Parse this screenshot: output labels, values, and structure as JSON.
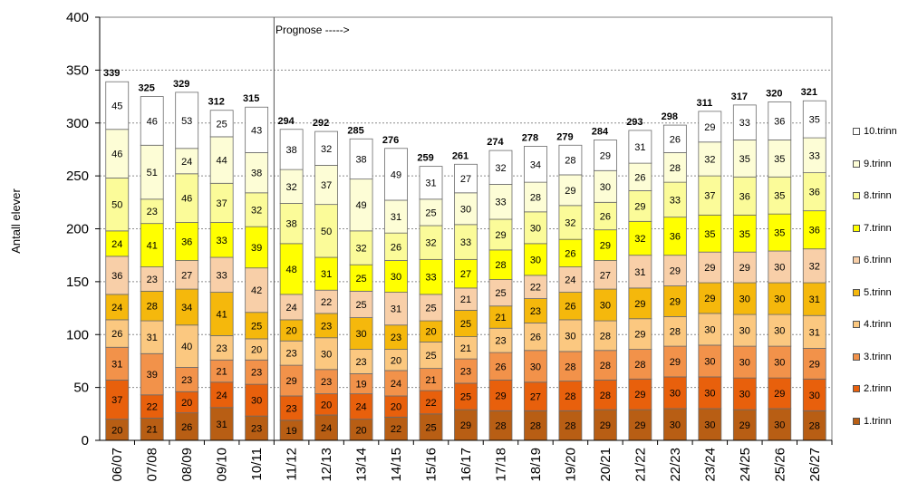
{
  "chart_data": {
    "type": "bar",
    "stacked": true,
    "ylabel": "Antall elever",
    "xlabel": "",
    "ylim": [
      0,
      400
    ],
    "yticks": [
      0,
      50,
      100,
      150,
      200,
      250,
      300,
      350,
      400
    ],
    "grid": "dashed horizontal gridlines",
    "legend_position": "right",
    "annotation": {
      "text": "Prognose ----->",
      "after_category": "10/11"
    },
    "categories": [
      "06/07",
      "07/08",
      "08/09",
      "09/10",
      "10/11",
      "11/12",
      "12/13",
      "13/14",
      "14/15",
      "15/16",
      "16/17",
      "17/18",
      "18/19",
      "19/20",
      "20/21",
      "21/22",
      "22/23",
      "23/24",
      "24/25",
      "25/26",
      "26/27"
    ],
    "totals": [
      339,
      325,
      329,
      312,
      315,
      294,
      292,
      285,
      276,
      259,
      261,
      274,
      278,
      279,
      284,
      293,
      298,
      311,
      317,
      320,
      321
    ],
    "series": [
      {
        "name": "1.trinn",
        "color": "#b85e14",
        "values": [
          20,
          21,
          26,
          31,
          23,
          19,
          24,
          20,
          22,
          25,
          29,
          28,
          28,
          28,
          29,
          29,
          30,
          30,
          29,
          30,
          28
        ]
      },
      {
        "name": "2.trinn",
        "color": "#e8600c",
        "values": [
          37,
          22,
          20,
          24,
          30,
          23,
          20,
          24,
          20,
          22,
          25,
          29,
          27,
          28,
          28,
          29,
          30,
          30,
          30,
          29,
          30
        ]
      },
      {
        "name": "3.trinn",
        "color": "#f2924a",
        "values": [
          31,
          39,
          23,
          21,
          23,
          29,
          23,
          19,
          24,
          21,
          23,
          26,
          30,
          28,
          28,
          28,
          29,
          30,
          30,
          30,
          29
        ]
      },
      {
        "name": "4.trinn",
        "color": "#fbc880",
        "values": [
          26,
          31,
          40,
          23,
          20,
          23,
          30,
          23,
          20,
          25,
          21,
          23,
          26,
          30,
          28,
          29,
          28,
          30,
          30,
          30,
          31
        ]
      },
      {
        "name": "5.trinn",
        "color": "#f5b80c",
        "values": [
          24,
          28,
          34,
          41,
          25,
          20,
          23,
          30,
          23,
          20,
          25,
          21,
          23,
          26,
          30,
          29,
          29,
          29,
          30,
          30,
          31
        ]
      },
      {
        "name": "6.trinn",
        "color": "#f8cfa8",
        "values": [
          36,
          23,
          27,
          33,
          42,
          24,
          22,
          25,
          31,
          25,
          21,
          25,
          22,
          24,
          27,
          31,
          29,
          29,
          29,
          30,
          32
        ]
      },
      {
        "name": "7.trinn",
        "color": "#ffff00",
        "values": [
          24,
          41,
          36,
          33,
          39,
          48,
          31,
          25,
          30,
          33,
          27,
          28,
          30,
          26,
          29,
          32,
          36,
          35,
          35,
          35,
          36
        ]
      },
      {
        "name": "8.trinn",
        "color": "#fbfb99",
        "values": [
          50,
          23,
          46,
          37,
          32,
          38,
          50,
          32,
          26,
          32,
          33,
          29,
          30,
          32,
          26,
          29,
          33,
          37,
          36,
          35,
          36
        ]
      },
      {
        "name": "9.trinn",
        "color": "#fdfdd6",
        "values": [
          46,
          51,
          24,
          44,
          38,
          32,
          37,
          49,
          31,
          25,
          30,
          33,
          28,
          29,
          30,
          26,
          28,
          32,
          35,
          35,
          33
        ]
      },
      {
        "name": "10.trinn",
        "color": "#ffffff",
        "values": [
          45,
          46,
          53,
          25,
          43,
          38,
          32,
          38,
          49,
          31,
          27,
          32,
          34,
          28,
          29,
          31,
          26,
          29,
          33,
          36,
          35
        ]
      }
    ]
  }
}
